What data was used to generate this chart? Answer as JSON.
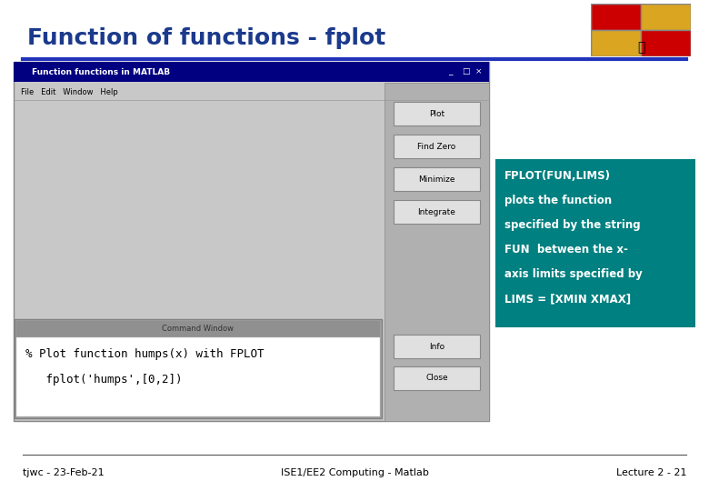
{
  "title": "Function of functions - fplot",
  "title_color": "#1B3A8C",
  "title_fontsize": 18,
  "bg_color": "#FFFFFF",
  "slide_footer_left": "tjwc - 23-Feb-21",
  "slide_footer_center": "ISE1/EE2 Computing - Matlab",
  "slide_footer_right": "Lecture 2 - 21",
  "footer_fontsize": 8,
  "info_box_bg": "#008080",
  "info_box_text_color": "#FFFFFF",
  "info_box_line1": "FPLOT(FUN,LIMS)",
  "info_box_line2": "plots the function",
  "info_box_line3": "specified by the string",
  "info_box_line4": "FUN  between the x-",
  "info_box_line5": "axis limits specified by",
  "info_box_line6": "LIMS = [XMIN XMAX]",
  "matlab_win_title": "Function functions in MATLAB",
  "matlab_menu": "File   Edit   Window   Help",
  "plot_line_color": "#0000CC",
  "cmd_title": "Command Window",
  "cmd_line1": "% Plot function humps(x) with FPLOT",
  "cmd_line2": "   fplot('humps',[0,2])",
  "button_labels": [
    "Plot",
    "Find Zero",
    "Minimize",
    "Integrate",
    "Info",
    "Close"
  ]
}
